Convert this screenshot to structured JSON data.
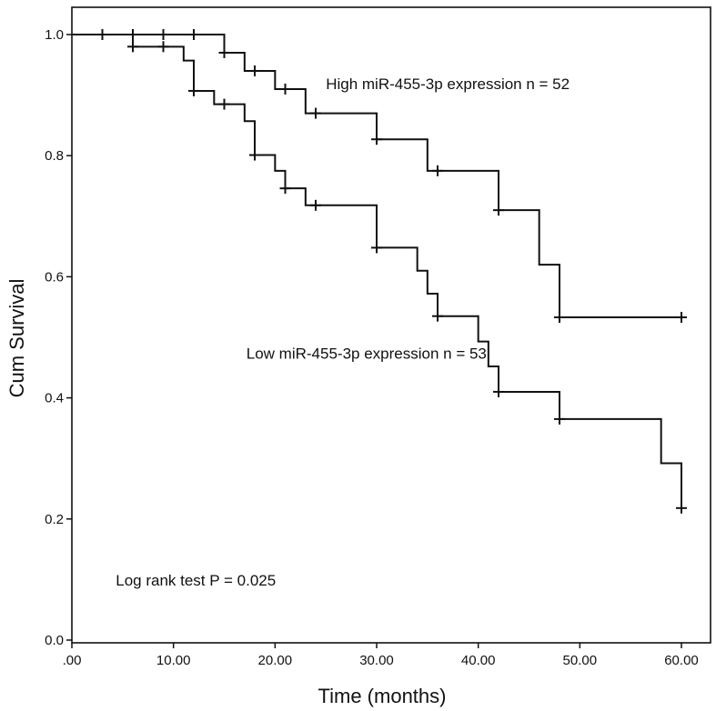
{
  "chart_data": {
    "type": "line",
    "subtype": "kaplan-meier",
    "xlabel": "Time (months)",
    "ylabel": "Cum Survival",
    "xlim": [
      0,
      62
    ],
    "ylim": [
      0,
      1.05
    ],
    "x_ticks": [
      0,
      10,
      20,
      30,
      40,
      50,
      60
    ],
    "x_tick_labels": [
      ".00",
      "10.00",
      "20.00",
      "30.00",
      "40.00",
      "50.00",
      "60.00"
    ],
    "y_ticks": [
      0,
      0.2,
      0.4,
      0.6,
      0.8,
      1.0
    ],
    "y_tick_labels": [
      "0.0",
      "0.2",
      "0.4",
      "0.6",
      "0.8",
      "1.0"
    ],
    "series": [
      {
        "name": "High miR-455-3p expression n = 52",
        "steps": [
          [
            0,
            1.0
          ],
          [
            15,
            0.97
          ],
          [
            17,
            0.94
          ],
          [
            20,
            0.91
          ],
          [
            23,
            0.87
          ],
          [
            30,
            0.827
          ],
          [
            35,
            0.775
          ],
          [
            42,
            0.71
          ],
          [
            46,
            0.62
          ],
          [
            48,
            0.533
          ]
        ],
        "end_x": 60,
        "censored": [
          [
            3,
            1.0
          ],
          [
            6,
            1.0
          ],
          [
            9,
            1.0
          ],
          [
            12,
            1.0
          ],
          [
            15,
            0.97
          ],
          [
            18,
            0.94
          ],
          [
            21,
            0.91
          ],
          [
            24,
            0.87
          ],
          [
            30,
            0.827
          ],
          [
            36,
            0.775
          ],
          [
            42,
            0.71
          ],
          [
            48,
            0.533
          ],
          [
            60,
            0.533
          ]
        ]
      },
      {
        "name": "Low miR-455-3p expression n = 53",
        "steps": [
          [
            0,
            1.0
          ],
          [
            6,
            0.98
          ],
          [
            11,
            0.957
          ],
          [
            12,
            0.907
          ],
          [
            14,
            0.885
          ],
          [
            17,
            0.857
          ],
          [
            18,
            0.801
          ],
          [
            20,
            0.775
          ],
          [
            21,
            0.746
          ],
          [
            23,
            0.718
          ],
          [
            30,
            0.648
          ],
          [
            34,
            0.61
          ],
          [
            35,
            0.572
          ],
          [
            36,
            0.535
          ],
          [
            40,
            0.493
          ],
          [
            41,
            0.452
          ],
          [
            42,
            0.41
          ],
          [
            48,
            0.365
          ],
          [
            58,
            0.292
          ],
          [
            60,
            0.218
          ]
        ],
        "end_x": 60,
        "censored": [
          [
            6,
            0.98
          ],
          [
            9,
            0.98
          ],
          [
            12,
            0.907
          ],
          [
            15,
            0.885
          ],
          [
            18,
            0.801
          ],
          [
            21,
            0.746
          ],
          [
            24,
            0.718
          ],
          [
            30,
            0.648
          ],
          [
            36,
            0.535
          ],
          [
            42,
            0.41
          ],
          [
            48,
            0.365
          ],
          [
            60,
            0.218
          ]
        ]
      }
    ],
    "annotations": [
      {
        "text": "High miR-455-3p expression n = 52",
        "x": 37,
        "y": 0.91
      },
      {
        "text": "Low miR-455-3p expression n = 53",
        "x": 29,
        "y": 0.465
      },
      {
        "text": "Log rank test P = 0.025",
        "x": 12.2,
        "y": 0.09
      }
    ]
  }
}
